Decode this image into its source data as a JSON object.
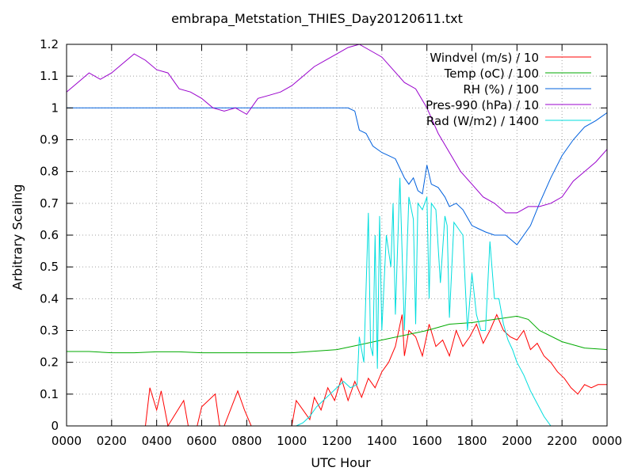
{
  "chart_data": {
    "type": "line",
    "title": "embrapa_Metstation_THIES_Day20120611.txt",
    "xlabel": "UTC Hour",
    "ylabel": "Arbitrary Scaling",
    "xlim": [
      0,
      24
    ],
    "ylim": [
      0,
      1.2
    ],
    "x_ticks": [
      "0000",
      "0200",
      "0400",
      "0600",
      "0800",
      "1000",
      "1200",
      "1400",
      "1600",
      "1800",
      "2000",
      "2200",
      "0000"
    ],
    "y_ticks": [
      "0",
      "0.1",
      "0.2",
      "0.3",
      "0.4",
      "0.5",
      "0.6",
      "0.7",
      "0.8",
      "0.9",
      "1",
      "1.1",
      "1.2"
    ],
    "grid": true,
    "legend_position": "top-right",
    "series": [
      {
        "name": "Windvel (m/s) / 10",
        "color": "#ff0000",
        "x": [
          0,
          1.1,
          1.2,
          3.5,
          3.7,
          4.0,
          4.2,
          4.5,
          5.2,
          5.4,
          5.8,
          6.0,
          6.6,
          6.8,
          7.0,
          7.6,
          7.9,
          8.2,
          10.0,
          10.2,
          10.5,
          10.8,
          11.0,
          11.3,
          11.6,
          11.9,
          12.2,
          12.5,
          12.8,
          13.1,
          13.4,
          13.7,
          14.0,
          14.3,
          14.6,
          14.9,
          15.0,
          15.2,
          15.5,
          15.8,
          16.1,
          16.4,
          16.7,
          17.0,
          17.3,
          17.6,
          17.9,
          18.2,
          18.5,
          18.8,
          19.1,
          19.4,
          19.7,
          20.0,
          20.3,
          20.6,
          20.9,
          21.2,
          21.5,
          21.8,
          22.1,
          22.4,
          22.7,
          23.0,
          23.3,
          23.6,
          24.0
        ],
        "values": [
          0,
          0,
          0,
          0,
          0.12,
          0.05,
          0.11,
          0,
          0.08,
          0,
          0,
          0.06,
          0.1,
          0,
          0,
          0.11,
          0.05,
          0,
          0,
          0.08,
          0.05,
          0.02,
          0.09,
          0.05,
          0.12,
          0.08,
          0.15,
          0.08,
          0.14,
          0.09,
          0.15,
          0.12,
          0.17,
          0.2,
          0.25,
          0.35,
          0.22,
          0.3,
          0.28,
          0.22,
          0.32,
          0.25,
          0.27,
          0.22,
          0.3,
          0.25,
          0.28,
          0.32,
          0.26,
          0.3,
          0.35,
          0.3,
          0.28,
          0.27,
          0.3,
          0.24,
          0.26,
          0.22,
          0.2,
          0.17,
          0.15,
          0.12,
          0.1,
          0.13,
          0.12,
          0.13,
          0.13
        ]
      },
      {
        "name": "Temp (oC) / 100",
        "color": "#00aa00",
        "x": [
          0,
          1,
          2,
          3,
          4,
          5,
          6,
          7,
          8,
          9,
          10,
          11,
          12,
          13,
          14,
          15,
          16,
          17,
          18,
          19,
          20,
          20.5,
          21,
          22,
          23,
          24
        ],
        "values": [
          0.234,
          0.234,
          0.23,
          0.23,
          0.233,
          0.233,
          0.23,
          0.23,
          0.23,
          0.23,
          0.23,
          0.235,
          0.24,
          0.255,
          0.27,
          0.285,
          0.3,
          0.32,
          0.325,
          0.335,
          0.345,
          0.335,
          0.3,
          0.265,
          0.245,
          0.24
        ]
      },
      {
        "name": "RH (%) / 100",
        "color": "#0060dd",
        "x": [
          0,
          12.5,
          12.8,
          13.0,
          13.3,
          13.6,
          14.0,
          14.3,
          14.6,
          15.0,
          15.2,
          15.4,
          15.6,
          15.8,
          16.0,
          16.2,
          16.5,
          16.8,
          17.0,
          17.3,
          17.6,
          18.0,
          18.3,
          18.6,
          19.0,
          19.5,
          20.0,
          20.3,
          20.6,
          21.0,
          21.5,
          22.0,
          22.5,
          23.0,
          23.5,
          24.0
        ],
        "values": [
          1.0,
          1.0,
          0.99,
          0.93,
          0.92,
          0.88,
          0.86,
          0.85,
          0.84,
          0.78,
          0.76,
          0.78,
          0.74,
          0.73,
          0.82,
          0.76,
          0.75,
          0.72,
          0.69,
          0.7,
          0.68,
          0.63,
          0.62,
          0.61,
          0.6,
          0.6,
          0.57,
          0.6,
          0.63,
          0.7,
          0.78,
          0.85,
          0.9,
          0.94,
          0.96,
          0.985
        ]
      },
      {
        "name": "Pres-990 (hPa) / 10",
        "color": "#9900cc",
        "x": [
          0,
          0.5,
          1.0,
          1.5,
          2.0,
          2.5,
          3.0,
          3.5,
          4.0,
          4.5,
          5.0,
          5.5,
          6.0,
          6.5,
          7.0,
          7.5,
          8.0,
          8.5,
          9.0,
          9.5,
          10.0,
          10.5,
          11.0,
          11.5,
          12.0,
          12.5,
          13.0,
          13.5,
          14.0,
          14.5,
          15.0,
          15.5,
          16.0,
          16.5,
          17.0,
          17.5,
          18.0,
          18.5,
          19.0,
          19.5,
          20.0,
          20.5,
          21.0,
          21.5,
          22.0,
          22.5,
          23.0,
          23.5,
          24.0
        ],
        "values": [
          1.05,
          1.08,
          1.11,
          1.09,
          1.11,
          1.14,
          1.17,
          1.15,
          1.12,
          1.11,
          1.06,
          1.05,
          1.03,
          1.0,
          0.99,
          1.0,
          0.98,
          1.03,
          1.04,
          1.05,
          1.07,
          1.1,
          1.13,
          1.15,
          1.17,
          1.19,
          1.2,
          1.18,
          1.16,
          1.12,
          1.08,
          1.06,
          1.0,
          0.92,
          0.86,
          0.8,
          0.76,
          0.72,
          0.7,
          0.67,
          0.67,
          0.69,
          0.69,
          0.7,
          0.72,
          0.77,
          0.8,
          0.83,
          0.87
        ]
      },
      {
        "name": "Rad (W/m2) / 1400",
        "color": "#00dddd",
        "x": [
          0,
          9.8,
          10.2,
          10.5,
          10.8,
          11.1,
          11.4,
          11.7,
          12.0,
          12.3,
          12.6,
          12.9,
          13.0,
          13.2,
          13.4,
          13.5,
          13.6,
          13.7,
          13.8,
          13.9,
          14.0,
          14.2,
          14.4,
          14.5,
          14.6,
          14.8,
          15.0,
          15.2,
          15.4,
          15.5,
          15.6,
          15.8,
          16.0,
          16.1,
          16.2,
          16.4,
          16.6,
          16.8,
          16.9,
          17.0,
          17.2,
          17.4,
          17.6,
          17.8,
          18.0,
          18.2,
          18.4,
          18.6,
          18.8,
          19.0,
          19.2,
          19.4,
          19.6,
          19.8,
          20.0,
          20.3,
          20.6,
          20.9,
          21.2,
          21.5,
          22.0,
          24.0
        ],
        "values": [
          0,
          0,
          0,
          0.01,
          0.03,
          0.06,
          0.08,
          0.1,
          0.12,
          0.14,
          0.12,
          0.13,
          0.28,
          0.2,
          0.67,
          0.25,
          0.22,
          0.6,
          0.18,
          0.66,
          0.3,
          0.6,
          0.5,
          0.7,
          0.35,
          0.78,
          0.3,
          0.72,
          0.65,
          0.32,
          0.7,
          0.68,
          0.72,
          0.4,
          0.7,
          0.68,
          0.45,
          0.66,
          0.63,
          0.34,
          0.64,
          0.62,
          0.6,
          0.3,
          0.48,
          0.35,
          0.3,
          0.3,
          0.58,
          0.4,
          0.4,
          0.32,
          0.27,
          0.24,
          0.2,
          0.16,
          0.11,
          0.07,
          0.03,
          0.0,
          0,
          0
        ]
      }
    ]
  }
}
